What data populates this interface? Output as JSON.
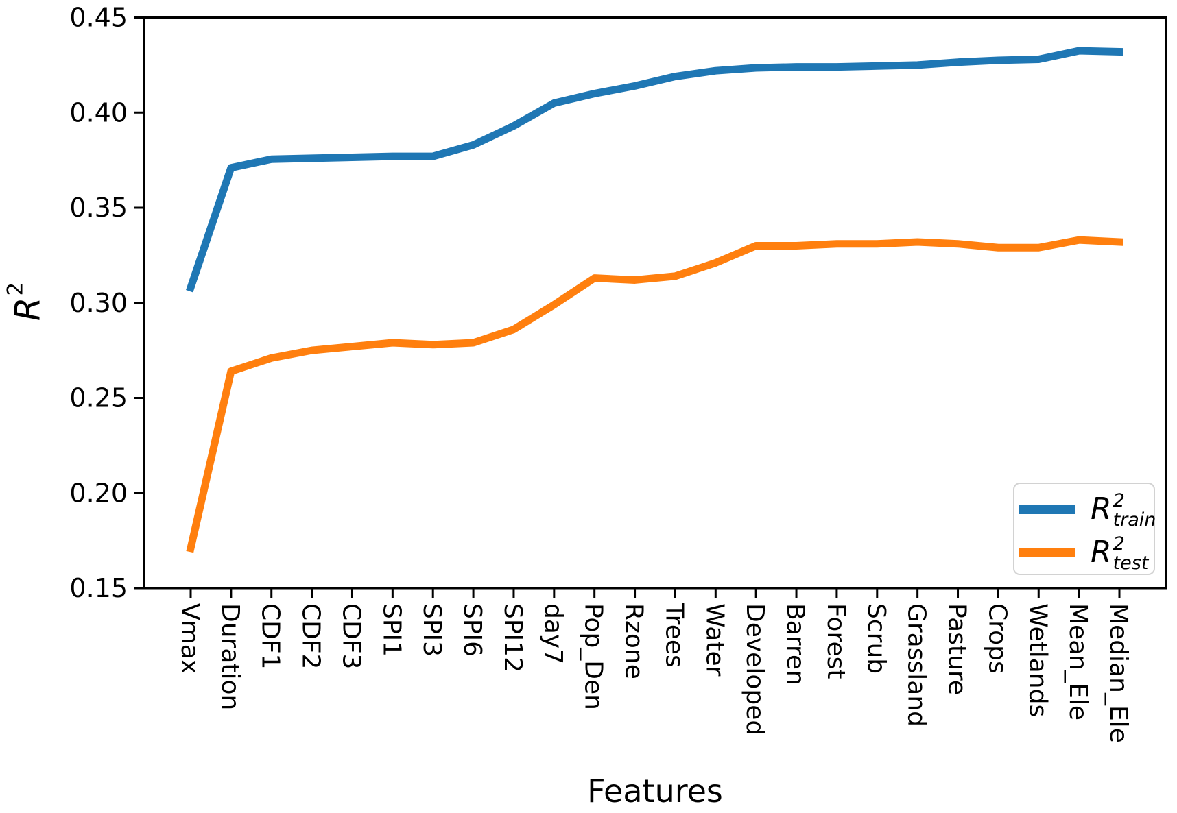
{
  "figure": {
    "xlabel": "Features",
    "ylabel": {
      "base": "R",
      "sup": "2"
    },
    "background": "#ffffff",
    "axis_color": "#000000",
    "ytick_labels": [
      "0.15",
      "0.20",
      "0.25",
      "0.30",
      "0.35",
      "0.40",
      "0.45"
    ],
    "ytick_values": [
      0.15,
      0.2,
      0.25,
      0.3,
      0.35,
      0.4,
      0.45
    ]
  },
  "chart_data": {
    "type": "line",
    "title": "",
    "xlabel": "Features",
    "ylabel": "R^2",
    "ylim": [
      0.15,
      0.45
    ],
    "grid": false,
    "legend_position": "lower right",
    "categories": [
      "Vmax",
      "Duration",
      "CDF1",
      "CDF2",
      "CDF3",
      "SPI1",
      "SPI3",
      "SPI6",
      "SPI12",
      "day7",
      "Pop_Den",
      "Rzone",
      "Trees",
      "Water",
      "Developed",
      "Barren",
      "Forest",
      "Scrub",
      "Grassland",
      "Pasture",
      "Crops",
      "Wetlands",
      "Mean_Ele",
      "Median_Ele"
    ],
    "series": [
      {
        "name": "R2_train",
        "label": {
          "base": "R",
          "sup": "2",
          "sub": "train"
        },
        "color": "#1f77b4",
        "line_width": 11,
        "values": [
          0.308,
          0.371,
          0.3755,
          0.376,
          0.3765,
          0.377,
          0.377,
          0.383,
          0.393,
          0.405,
          0.41,
          0.414,
          0.419,
          0.422,
          0.4235,
          0.424,
          0.424,
          0.4245,
          0.425,
          0.4265,
          0.4275,
          0.428,
          0.4325,
          0.432
        ]
      },
      {
        "name": "R2_test",
        "label": {
          "base": "R",
          "sup": "2",
          "sub": "test"
        },
        "color": "#ff7f0e",
        "line_width": 11,
        "values": [
          0.171,
          0.264,
          0.271,
          0.275,
          0.277,
          0.279,
          0.278,
          0.279,
          0.286,
          0.299,
          0.313,
          0.312,
          0.314,
          0.321,
          0.33,
          0.33,
          0.331,
          0.331,
          0.332,
          0.331,
          0.329,
          0.329,
          0.333,
          0.332
        ]
      }
    ]
  }
}
